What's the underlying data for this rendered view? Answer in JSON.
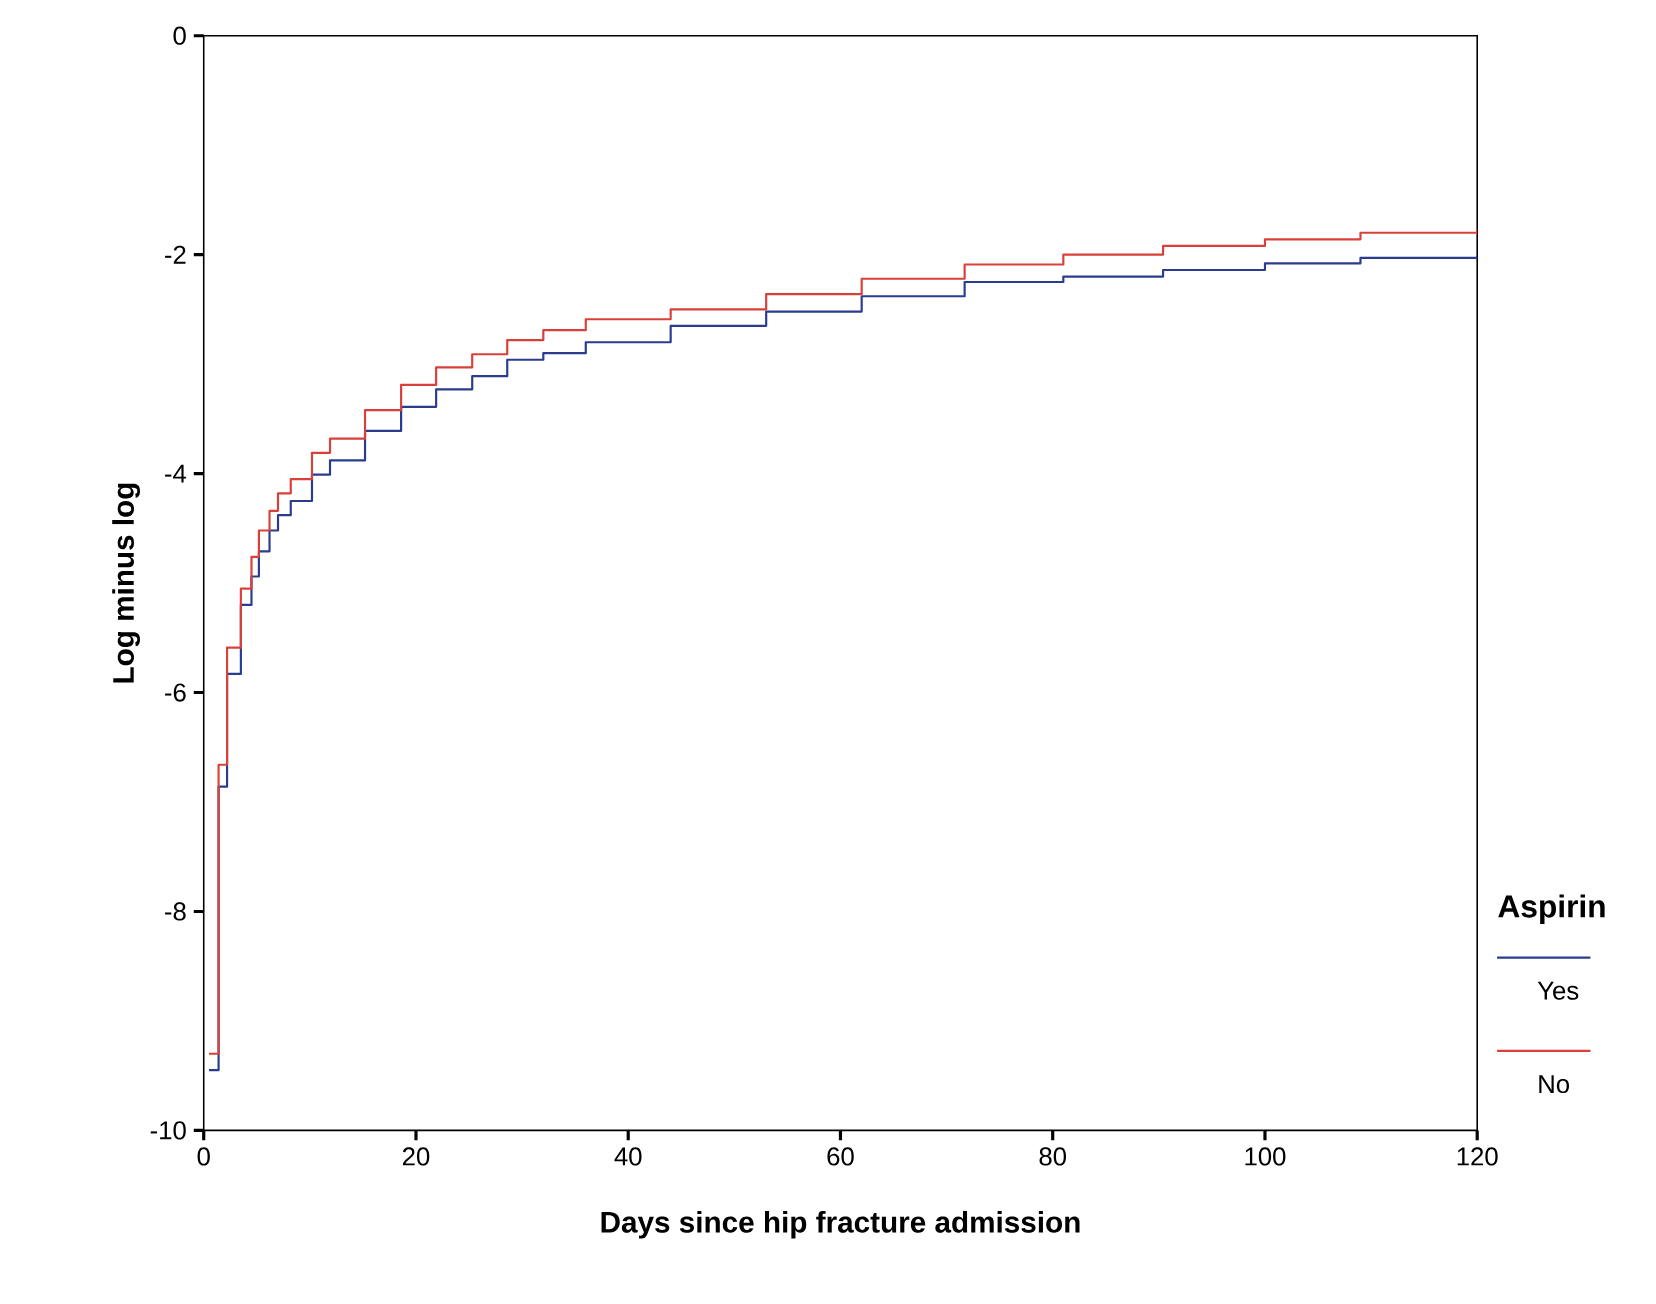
{
  "chart_data": {
    "type": "step",
    "xlabel": "Days since hip fracture admission",
    "ylabel": "Log minus log",
    "legend_title": "Aspirin",
    "legend": "right",
    "xlim": [
      0,
      120
    ],
    "ylim": [
      -10,
      0
    ],
    "xticks": [
      0,
      20,
      40,
      60,
      80,
      100,
      120
    ],
    "yticks": [
      -10,
      -8,
      -6,
      -4,
      -2,
      0
    ],
    "grid": false,
    "series": [
      {
        "name": "Yes",
        "color": "#2b3c8f",
        "x": [
          0.5,
          1.4,
          2.2,
          3.5,
          4.5,
          5.2,
          6.2,
          7,
          8.2,
          10.2,
          11.9,
          15.2,
          18.6,
          21.9,
          25.3,
          28.6,
          32,
          36,
          44,
          53,
          62,
          71.7,
          81,
          90.4,
          100,
          109,
          120
        ],
        "values": [
          -9.45,
          -6.86,
          -5.83,
          -5.2,
          -4.94,
          -4.71,
          -4.52,
          -4.38,
          -4.25,
          -4.01,
          -3.88,
          -3.61,
          -3.39,
          -3.23,
          -3.11,
          -2.96,
          -2.9,
          -2.8,
          -2.65,
          -2.52,
          -2.38,
          -2.25,
          -2.2,
          -2.14,
          -2.08,
          -2.03,
          -2.01
        ]
      },
      {
        "name": "No",
        "color": "#d9403a",
        "x": [
          0.5,
          1.4,
          2.2,
          3.5,
          4.5,
          5.2,
          6.2,
          7,
          8.2,
          10.2,
          11.9,
          15.2,
          18.6,
          21.9,
          25.3,
          28.6,
          32,
          36,
          44,
          53,
          62,
          71.7,
          81,
          90.4,
          100,
          109,
          120
        ],
        "values": [
          -9.3,
          -6.66,
          -5.59,
          -5.05,
          -4.76,
          -4.52,
          -4.34,
          -4.18,
          -4.05,
          -3.81,
          -3.68,
          -3.42,
          -3.19,
          -3.03,
          -2.91,
          -2.78,
          -2.69,
          -2.59,
          -2.5,
          -2.36,
          -2.22,
          -2.09,
          -2.0,
          -1.92,
          -1.86,
          -1.8,
          -1.76
        ]
      }
    ]
  }
}
